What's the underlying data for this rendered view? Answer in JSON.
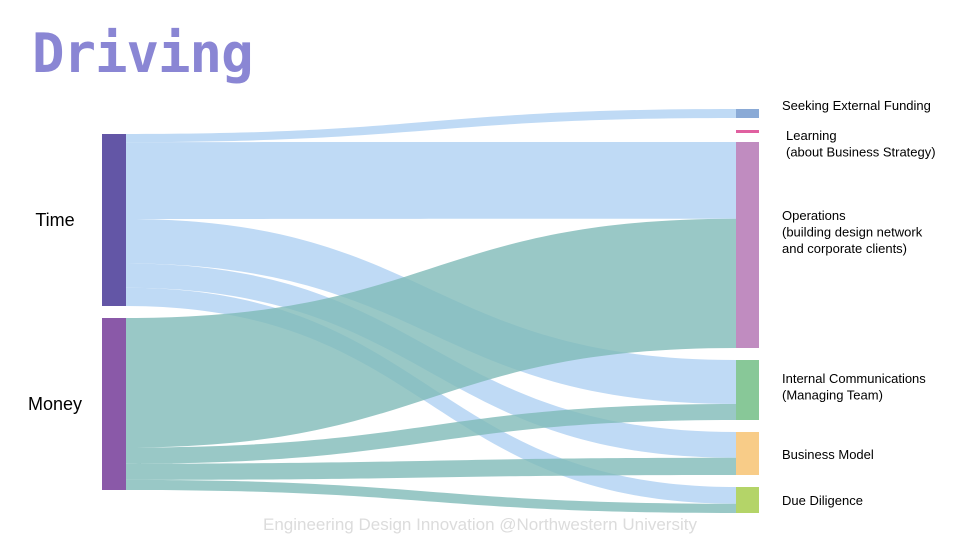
{
  "title": "Driving",
  "footer": "Engineering Design Innovation @Northwestern University",
  "colors": {
    "title": "#8a86d4",
    "time_flow": "#bcd8f4",
    "money_flow": "#7fbab8"
  },
  "chart_data": {
    "type": "sankey",
    "sources": [
      {
        "id": "time",
        "label": "Time",
        "color": "#6356a6"
      },
      {
        "id": "money",
        "label": "Money",
        "color": "#8a59a8"
      }
    ],
    "targets": [
      {
        "id": "funding",
        "lines": [
          "Seeking External Funding"
        ],
        "color": "#8aaad6"
      },
      {
        "id": "learning",
        "lines": [
          "Learning",
          "(about Business Strategy)"
        ],
        "color": "#e060a0"
      },
      {
        "id": "operations",
        "lines": [
          "Operations",
          "(building design network",
          "and corporate clients)"
        ],
        "color": "#c08cc0"
      },
      {
        "id": "internal",
        "lines": [
          "Internal Communications",
          "(Managing Team)"
        ],
        "color": "#88c898"
      },
      {
        "id": "model",
        "lines": [
          "Business Model"
        ],
        "color": "#f8cc88"
      },
      {
        "id": "diligence",
        "lines": [
          "Due Diligence"
        ],
        "color": "#b4d468"
      }
    ],
    "flows": [
      {
        "source": "time",
        "target": "funding",
        "value": 4
      },
      {
        "source": "time",
        "target": "operations",
        "value": 38
      },
      {
        "source": "time",
        "target": "internal",
        "value": 22
      },
      {
        "source": "time",
        "target": "model",
        "value": 12
      },
      {
        "source": "time",
        "target": "diligence",
        "value": 9
      },
      {
        "source": "money",
        "target": "operations",
        "value": 64
      },
      {
        "source": "money",
        "target": "internal",
        "value": 8
      },
      {
        "source": "money",
        "target": "model",
        "value": 8
      },
      {
        "source": "money",
        "target": "diligence",
        "value": 5
      }
    ]
  }
}
